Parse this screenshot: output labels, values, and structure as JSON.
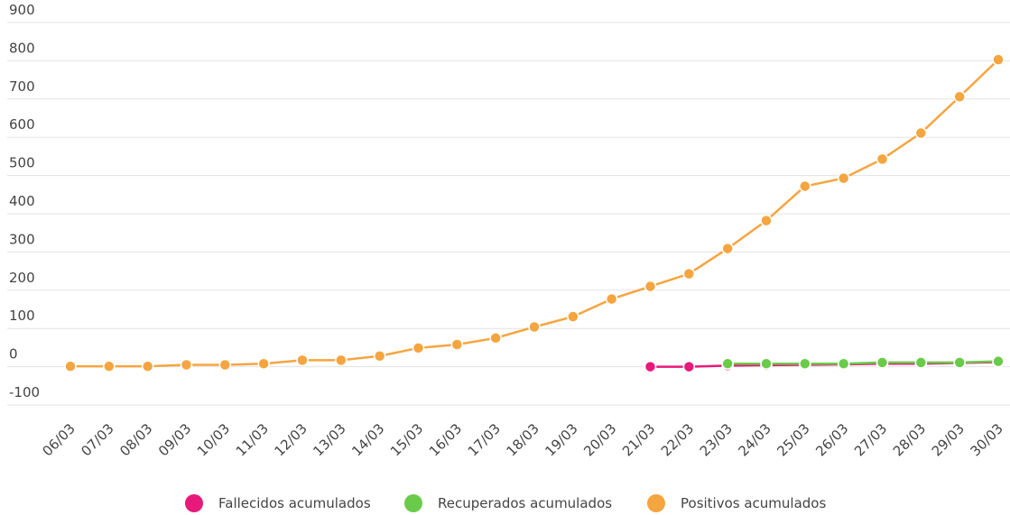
{
  "chart_data": {
    "type": "line",
    "categories": [
      "06/03",
      "07/03",
      "08/03",
      "09/03",
      "10/03",
      "11/03",
      "12/03",
      "13/03",
      "14/03",
      "15/03",
      "16/03",
      "17/03",
      "18/03",
      "19/03",
      "20/03",
      "21/03",
      "22/03",
      "23/03",
      "24/03",
      "25/03",
      "26/03",
      "27/03",
      "28/03",
      "29/03",
      "30/03"
    ],
    "series": [
      {
        "name": "Fallecidos acumulados",
        "color": "#e8197a",
        "values": [
          null,
          null,
          null,
          null,
          null,
          null,
          null,
          null,
          null,
          null,
          null,
          null,
          null,
          null,
          null,
          0,
          0,
          3,
          4,
          5,
          6,
          8,
          8,
          10,
          12
        ]
      },
      {
        "name": "Recuperados acumulados",
        "color": "#6acb4b",
        "values": [
          null,
          null,
          null,
          null,
          null,
          null,
          null,
          null,
          null,
          null,
          null,
          null,
          null,
          null,
          null,
          null,
          null,
          8,
          8,
          8,
          8,
          11,
          11,
          11,
          14
        ]
      },
      {
        "name": "Positivos acumulados",
        "color": "#f5a53f",
        "values": [
          1,
          1,
          1,
          5,
          5,
          8,
          17,
          17,
          28,
          49,
          58,
          75,
          104,
          131,
          177,
          210,
          243,
          309,
          382,
          472,
          493,
          543,
          611,
          706,
          803
        ]
      }
    ],
    "ylim": [
      -100,
      900
    ],
    "yticks": [
      -100,
      0,
      100,
      200,
      300,
      400,
      500,
      600,
      700,
      800,
      900
    ],
    "grid": true,
    "legend": "bottom"
  }
}
